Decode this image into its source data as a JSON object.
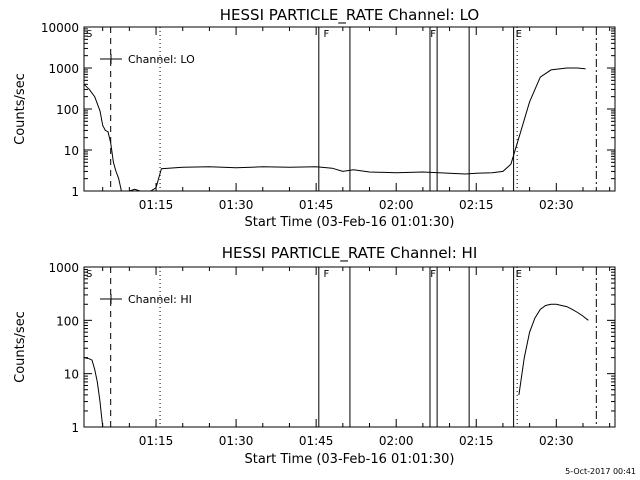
{
  "footer": {
    "stamp": "5-Oct-2017 00:41"
  },
  "chart_data": [
    {
      "type": "line",
      "title": "HESSI PARTICLE_RATE Channel: LO",
      "xlabel": "Start Time (03-Feb-16 01:01:30)",
      "ylabel": "Counts/sec",
      "y_scale": "log",
      "ylim": [
        1,
        10000
      ],
      "xlim": [
        "01:01:30",
        "02:41:00"
      ],
      "x_ticks": [
        "01:15",
        "01:30",
        "01:45",
        "02:00",
        "02:15",
        "02:30"
      ],
      "y_ticks": [
        "1",
        "10",
        "100",
        "1000",
        "10000"
      ],
      "legend": {
        "label": "Channel: LO",
        "placement": "top-left"
      },
      "series": [
        {
          "name": "Channel: LO",
          "x": [
            "01:01:30",
            "01:02:30",
            "01:03:30",
            "01:04:30",
            "01:05:00",
            "01:05:30",
            "01:06:00",
            "01:06:30",
            "01:07:00",
            "01:07:30",
            "01:08:00",
            "01:08:30",
            "01:09:00",
            "01:10:00",
            "01:11:00",
            "01:12:00",
            "01:13:00",
            "01:14:00",
            "01:15:00",
            "01:16:00",
            "01:20:00",
            "01:25:00",
            "01:30:00",
            "01:35:00",
            "01:40:00",
            "01:45:00",
            "01:48:00",
            "01:50:00",
            "01:52:00",
            "01:55:00",
            "02:00:00",
            "02:05:00",
            "02:10:00",
            "02:13:00",
            "02:15:00",
            "02:18:00",
            "02:20:00",
            "02:21:30",
            "02:23:00",
            "02:25:00",
            "02:27:00",
            "02:29:00",
            "02:32:00",
            "02:34:00",
            "02:35:30"
          ],
          "values": [
            400,
            300,
            200,
            90,
            40,
            30,
            28,
            15,
            5,
            3,
            2,
            1,
            1,
            1,
            1.1,
            1,
            1,
            1,
            1.2,
            3.5,
            3.8,
            3.9,
            3.7,
            3.9,
            3.8,
            3.9,
            3.6,
            3,
            3.3,
            2.9,
            2.8,
            2.9,
            2.7,
            2.6,
            2.7,
            2.8,
            3,
            4.5,
            20,
            150,
            600,
            900,
            1000,
            1000,
            950
          ]
        }
      ],
      "markers": [
        {
          "time": "01:01:30",
          "label": "S"
        },
        {
          "time": "01:46:00",
          "label": "F"
        },
        {
          "time": "02:06:00",
          "label": "F"
        },
        {
          "time": "02:22:00",
          "label": "E"
        }
      ]
    },
    {
      "type": "line",
      "title": "HESSI PARTICLE_RATE Channel: HI",
      "xlabel": "Start Time (03-Feb-16 01:01:30)",
      "ylabel": "Counts/sec",
      "y_scale": "log",
      "ylim": [
        1,
        1000
      ],
      "xlim": [
        "01:01:30",
        "02:41:00"
      ],
      "x_ticks": [
        "01:15",
        "01:30",
        "01:45",
        "02:00",
        "02:15",
        "02:30"
      ],
      "y_ticks": [
        "1",
        "10",
        "100",
        "1000"
      ],
      "legend": {
        "label": "Channel: HI",
        "placement": "top-left"
      },
      "series": [
        {
          "name": "Channel: HI",
          "segments": [
            {
              "x": [
                "01:01:30",
                "01:02:30",
                "01:03:00",
                "01:03:30",
                "01:04:00",
                "01:04:30",
                "01:05:00"
              ],
              "values": [
                20,
                19,
                18,
                12,
                7,
                3,
                1
              ]
            },
            {
              "x": [
                "02:23:00",
                "02:24:00",
                "02:25:00",
                "02:26:00",
                "02:27:00",
                "02:28:00",
                "02:29:00",
                "02:30:00",
                "02:31:00",
                "02:32:00",
                "02:33:00",
                "02:34:00",
                "02:35:00",
                "02:36:00"
              ],
              "values": [
                4,
                20,
                60,
                110,
                160,
                190,
                200,
                200,
                190,
                180,
                160,
                140,
                120,
                100
              ]
            }
          ]
        }
      ],
      "markers": [
        {
          "time": "01:01:30",
          "label": "S"
        },
        {
          "time": "01:46:00",
          "label": "F"
        },
        {
          "time": "02:06:00",
          "label": "F"
        },
        {
          "time": "02:22:00",
          "label": "E"
        }
      ]
    }
  ]
}
